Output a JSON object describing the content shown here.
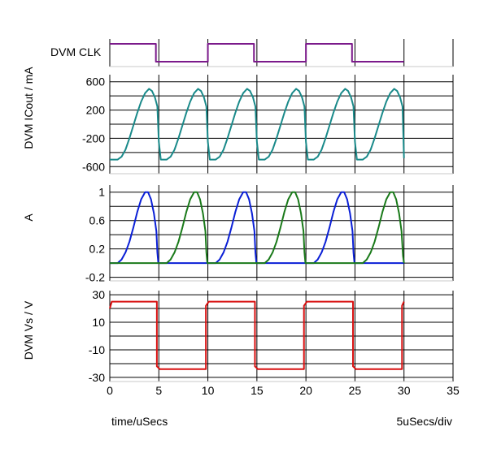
{
  "chart_data": [
    {
      "type": "line",
      "panel": "clk",
      "ylabel": "DVM CLK",
      "series": [
        {
          "color": "#7b1a8b",
          "points": [
            [
              0,
              1
            ],
            [
              4.7,
              1
            ],
            [
              4.7,
              0
            ],
            [
              10,
              0
            ],
            [
              10,
              1
            ],
            [
              14.7,
              1
            ],
            [
              14.7,
              0
            ],
            [
              20,
              0
            ],
            [
              20,
              1
            ],
            [
              24.7,
              1
            ],
            [
              24.7,
              0
            ],
            [
              30,
              0
            ]
          ]
        }
      ]
    },
    {
      "type": "line",
      "panel": "current",
      "ylabel": "DVM ICout / mA",
      "ylim": [
        -700,
        700
      ],
      "yticks": [
        600,
        200,
        -200,
        -600
      ],
      "grid": true,
      "series": [
        {
          "color": "#1a8a8a",
          "points": [
            [
              0,
              -500
            ],
            [
              0.8,
              -500
            ],
            [
              1.2,
              -460
            ],
            [
              1.6,
              -360
            ],
            [
              2.0,
              -200
            ],
            [
              2.4,
              -20
            ],
            [
              2.8,
              160
            ],
            [
              3.2,
              320
            ],
            [
              3.6,
              440
            ],
            [
              4.0,
              500
            ],
            [
              4.3,
              470
            ],
            [
              4.6,
              380
            ],
            [
              4.85,
              250
            ],
            [
              5.0,
              -250
            ],
            [
              5.2,
              -500
            ],
            [
              5.8,
              -500
            ],
            [
              6.2,
              -460
            ],
            [
              6.6,
              -360
            ],
            [
              7.0,
              -200
            ],
            [
              7.4,
              -20
            ],
            [
              7.8,
              160
            ],
            [
              8.2,
              320
            ],
            [
              8.6,
              440
            ],
            [
              9.0,
              500
            ],
            [
              9.3,
              470
            ],
            [
              9.6,
              380
            ],
            [
              9.85,
              250
            ],
            [
              10.0,
              -250
            ],
            [
              10.2,
              -500
            ],
            [
              10.8,
              -500
            ],
            [
              11.2,
              -460
            ],
            [
              11.6,
              -360
            ],
            [
              12.0,
              -200
            ],
            [
              12.4,
              -20
            ],
            [
              12.8,
              160
            ],
            [
              13.2,
              320
            ],
            [
              13.6,
              440
            ],
            [
              14.0,
              500
            ],
            [
              14.3,
              470
            ],
            [
              14.6,
              380
            ],
            [
              14.85,
              250
            ],
            [
              15.0,
              -250
            ],
            [
              15.2,
              -500
            ],
            [
              15.8,
              -500
            ],
            [
              16.2,
              -460
            ],
            [
              16.6,
              -360
            ],
            [
              17.0,
              -200
            ],
            [
              17.4,
              -20
            ],
            [
              17.8,
              160
            ],
            [
              18.2,
              320
            ],
            [
              18.6,
              440
            ],
            [
              19.0,
              500
            ],
            [
              19.3,
              470
            ],
            [
              19.6,
              380
            ],
            [
              19.85,
              250
            ],
            [
              20.0,
              -250
            ],
            [
              20.2,
              -500
            ],
            [
              20.8,
              -500
            ],
            [
              21.2,
              -460
            ],
            [
              21.6,
              -360
            ],
            [
              22.0,
              -200
            ],
            [
              22.4,
              -20
            ],
            [
              22.8,
              160
            ],
            [
              23.2,
              320
            ],
            [
              23.6,
              440
            ],
            [
              24.0,
              500
            ],
            [
              24.3,
              470
            ],
            [
              24.6,
              380
            ],
            [
              24.85,
              250
            ],
            [
              25.0,
              -250
            ],
            [
              25.2,
              -500
            ],
            [
              25.8,
              -500
            ],
            [
              26.2,
              -460
            ],
            [
              26.6,
              -360
            ],
            [
              27.0,
              -200
            ],
            [
              27.4,
              -20
            ],
            [
              27.8,
              160
            ],
            [
              28.2,
              320
            ],
            [
              28.6,
              440
            ],
            [
              29.0,
              500
            ],
            [
              29.3,
              470
            ],
            [
              29.6,
              380
            ],
            [
              29.85,
              250
            ],
            [
              30.0,
              -480
            ]
          ]
        }
      ]
    },
    {
      "type": "line",
      "panel": "a",
      "ylabel": "A",
      "ylim": [
        -0.25,
        1.1
      ],
      "yticks": [
        1,
        0.6,
        0.2,
        -0.2
      ],
      "grid": true,
      "series": [
        {
          "color": "#0a1fd6",
          "points": [
            [
              0,
              0
            ],
            [
              0.8,
              0
            ],
            [
              1.2,
              0.05
            ],
            [
              1.6,
              0.15
            ],
            [
              2.0,
              0.3
            ],
            [
              2.4,
              0.5
            ],
            [
              2.8,
              0.72
            ],
            [
              3.2,
              0.9
            ],
            [
              3.6,
              1.0
            ],
            [
              3.9,
              1.0
            ],
            [
              4.2,
              0.9
            ],
            [
              4.5,
              0.7
            ],
            [
              4.75,
              0.45
            ],
            [
              4.85,
              0.15
            ],
            [
              4.95,
              0
            ],
            [
              10.8,
              0
            ],
            [
              11.2,
              0.05
            ],
            [
              11.6,
              0.15
            ],
            [
              12.0,
              0.3
            ],
            [
              12.4,
              0.5
            ],
            [
              12.8,
              0.72
            ],
            [
              13.2,
              0.9
            ],
            [
              13.6,
              1.0
            ],
            [
              13.9,
              1.0
            ],
            [
              14.2,
              0.9
            ],
            [
              14.5,
              0.7
            ],
            [
              14.75,
              0.45
            ],
            [
              14.85,
              0.15
            ],
            [
              14.95,
              0
            ],
            [
              20.8,
              0
            ],
            [
              21.2,
              0.05
            ],
            [
              21.6,
              0.15
            ],
            [
              22.0,
              0.3
            ],
            [
              22.4,
              0.5
            ],
            [
              22.8,
              0.72
            ],
            [
              23.2,
              0.9
            ],
            [
              23.6,
              1.0
            ],
            [
              23.9,
              1.0
            ],
            [
              24.2,
              0.9
            ],
            [
              24.5,
              0.7
            ],
            [
              24.75,
              0.45
            ],
            [
              24.85,
              0.15
            ],
            [
              24.95,
              0
            ],
            [
              30,
              0
            ]
          ]
        },
        {
          "color": "#1a7a1a",
          "points": [
            [
              0,
              0
            ],
            [
              5.8,
              0
            ],
            [
              6.2,
              0.05
            ],
            [
              6.6,
              0.15
            ],
            [
              7.0,
              0.3
            ],
            [
              7.4,
              0.5
            ],
            [
              7.8,
              0.72
            ],
            [
              8.2,
              0.9
            ],
            [
              8.6,
              1.0
            ],
            [
              8.9,
              1.0
            ],
            [
              9.2,
              0.9
            ],
            [
              9.5,
              0.7
            ],
            [
              9.75,
              0.45
            ],
            [
              9.85,
              0.15
            ],
            [
              9.95,
              0
            ],
            [
              15.8,
              0
            ],
            [
              16.2,
              0.05
            ],
            [
              16.6,
              0.15
            ],
            [
              17.0,
              0.3
            ],
            [
              17.4,
              0.5
            ],
            [
              17.8,
              0.72
            ],
            [
              18.2,
              0.9
            ],
            [
              18.6,
              1.0
            ],
            [
              18.9,
              1.0
            ],
            [
              19.2,
              0.9
            ],
            [
              19.5,
              0.7
            ],
            [
              19.75,
              0.45
            ],
            [
              19.85,
              0.15
            ],
            [
              19.95,
              0
            ],
            [
              25.8,
              0
            ],
            [
              26.2,
              0.05
            ],
            [
              26.6,
              0.15
            ],
            [
              27.0,
              0.3
            ],
            [
              27.4,
              0.5
            ],
            [
              27.8,
              0.72
            ],
            [
              28.2,
              0.9
            ],
            [
              28.6,
              1.0
            ],
            [
              28.9,
              1.0
            ],
            [
              29.2,
              0.9
            ],
            [
              29.5,
              0.7
            ],
            [
              29.75,
              0.45
            ],
            [
              29.9,
              0.1
            ],
            [
              30,
              0
            ]
          ]
        }
      ]
    },
    {
      "type": "line",
      "panel": "vs",
      "ylabel": "DVM Vs / V",
      "ylim": [
        -33,
        33
      ],
      "yticks": [
        30,
        10,
        -10,
        -30
      ],
      "grid": true,
      "xlim": [
        0,
        35
      ],
      "xticks": [
        0,
        5,
        10,
        15,
        20,
        25,
        30,
        35
      ],
      "series": [
        {
          "color": "#d81010",
          "points": [
            [
              0,
              20
            ],
            [
              0.2,
              25
            ],
            [
              4.8,
              25
            ],
            [
              4.8,
              -22
            ],
            [
              5.1,
              -24
            ],
            [
              9.8,
              -24
            ],
            [
              9.8,
              22
            ],
            [
              10.1,
              25
            ],
            [
              14.8,
              25
            ],
            [
              14.8,
              -22
            ],
            [
              15.1,
              -24
            ],
            [
              19.8,
              -24
            ],
            [
              19.8,
              22
            ],
            [
              20.1,
              25
            ],
            [
              24.8,
              25
            ],
            [
              24.8,
              -22
            ],
            [
              25.1,
              -24
            ],
            [
              29.8,
              -24
            ],
            [
              29.8,
              22
            ],
            [
              30.0,
              25
            ]
          ]
        }
      ]
    }
  ],
  "footer": {
    "time_label": "time/uSecs",
    "scale_label": "5uSecs/div"
  }
}
